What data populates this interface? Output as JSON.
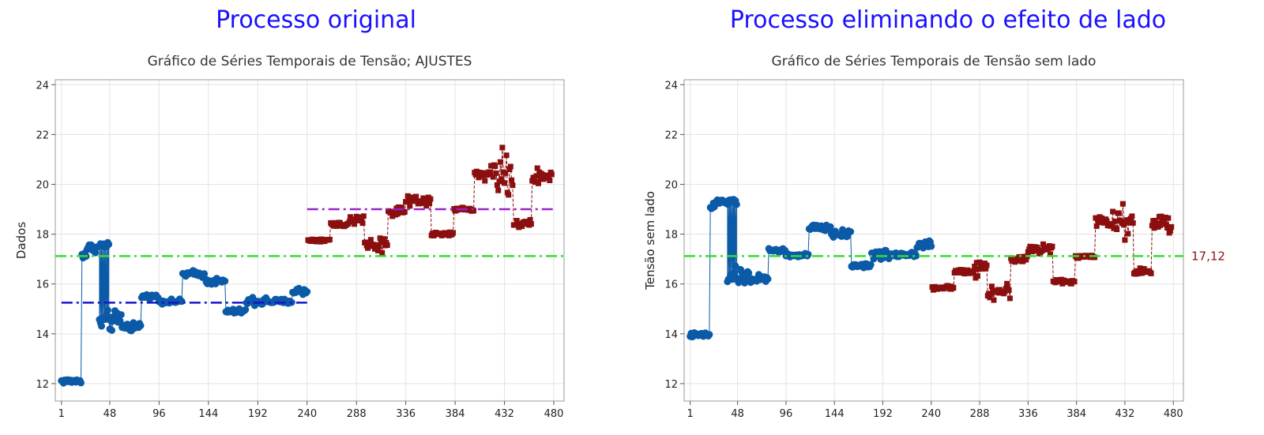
{
  "panels": [
    {
      "heading": "Processo original",
      "chart_title": "Gráfico de Séries Temporais de Tensão; AJUSTES",
      "ylabel": "Dados"
    },
    {
      "heading": "Processo eliminando o efeito de lado",
      "chart_title": "Gráfico de Séries Temporais de Tensão sem lado",
      "ylabel": "Tensão sem lado",
      "ref_label": "17,12"
    }
  ],
  "colors": {
    "heading": "#1a10ff",
    "group1": "#0b5aa8",
    "group2": "#8b0f0f",
    "overall_ref": "#33dd33",
    "group1_mean": "#1515cc",
    "group2_mean": "#9922cc",
    "grid": "#e3e3e3"
  },
  "chart_data": [
    {
      "type": "line",
      "title": "Gráfico de Séries Temporais de Tensão; AJUSTES",
      "xlabel": "",
      "ylabel": "Dados",
      "xlim": [
        -5,
        490
      ],
      "ylim": [
        11.3,
        24.2
      ],
      "xticks": [
        1,
        48,
        96,
        144,
        192,
        240,
        288,
        336,
        384,
        432,
        480
      ],
      "yticks": [
        12,
        14,
        16,
        18,
        20,
        22,
        24
      ],
      "grid": true,
      "reference_lines": [
        {
          "y": 17.12,
          "x_range": [
            -5,
            490
          ],
          "style": "dash-dot",
          "color": "#33dd33",
          "role": "overall"
        },
        {
          "y": 15.25,
          "x_range": [
            1,
            240
          ],
          "style": "dash-dot",
          "color": "#1515cc",
          "role": "group1"
        },
        {
          "y": 19.0,
          "x_range": [
            240,
            480
          ],
          "style": "dash-dot",
          "color": "#9922cc",
          "role": "group2"
        }
      ],
      "series": [
        {
          "marker": "circle",
          "segments": [
            {
              "x": [
                1,
                20
              ],
              "y": 12.1,
              "spread": 0.14
            },
            {
              "x": [
                21,
                25
              ],
              "y": 17.2,
              "spread": 0.3
            },
            {
              "x": [
                26,
                37
              ],
              "y": 17.45,
              "spread": 0.25
            },
            {
              "x": [
                38,
                47
              ],
              "y": 17.55,
              "spread": 0.2
            },
            {
              "x": [
                38,
                60
              ],
              "y": 14.5,
              "spread": 0.6
            },
            {
              "x": [
                61,
                78
              ],
              "y": 14.3,
              "spread": 0.3
            },
            {
              "x": [
                79,
                95
              ],
              "y": 15.5,
              "spread": 0.12
            },
            {
              "x": [
                96,
                118
              ],
              "y": 15.3,
              "spread": 0.12
            },
            {
              "x": [
                119,
                140
              ],
              "y": 16.4,
              "spread": 0.2
            },
            {
              "x": [
                141,
                160
              ],
              "y": 16.1,
              "spread": 0.2
            },
            {
              "x": [
                161,
                180
              ],
              "y": 14.9,
              "spread": 0.15
            },
            {
              "x": [
                181,
                200
              ],
              "y": 15.3,
              "spread": 0.3
            },
            {
              "x": [
                201,
                225
              ],
              "y": 15.3,
              "spread": 0.15
            },
            {
              "x": [
                226,
                240
              ],
              "y": 15.7,
              "spread": 0.25
            }
          ]
        },
        {
          "marker": "square",
          "segments": [
            {
              "x": [
                241,
                262
              ],
              "y": 17.75,
              "spread": 0.1
            },
            {
              "x": [
                263,
                280
              ],
              "y": 18.4,
              "spread": 0.12
            },
            {
              "x": [
                281,
                295
              ],
              "y": 18.6,
              "spread": 0.5
            },
            {
              "x": [
                296,
                318
              ],
              "y": 17.6,
              "spread": 0.4
            },
            {
              "x": [
                319,
                335
              ],
              "y": 18.9,
              "spread": 0.3
            },
            {
              "x": [
                336,
                360
              ],
              "y": 19.3,
              "spread": 0.3
            },
            {
              "x": [
                361,
                382
              ],
              "y": 18.0,
              "spread": 0.12
            },
            {
              "x": [
                383,
                402
              ],
              "y": 19.0,
              "spread": 0.12
            },
            {
              "x": [
                403,
                418
              ],
              "y": 20.4,
              "spread": 0.3
            },
            {
              "x": [
                419,
                440
              ],
              "y": 20.5,
              "spread": 1.2
            },
            {
              "x": [
                441,
                458
              ],
              "y": 18.4,
              "spread": 0.2
            },
            {
              "x": [
                459,
                478
              ],
              "y": 20.3,
              "spread": 0.5
            }
          ]
        }
      ]
    },
    {
      "type": "line",
      "title": "Gráfico de Séries Temporais de Tensão sem lado",
      "xlabel": "",
      "ylabel": "Tensão sem lado",
      "xlim": [
        -5,
        490
      ],
      "ylim": [
        11.3,
        24.2
      ],
      "xticks": [
        1,
        48,
        96,
        144,
        192,
        240,
        288,
        336,
        384,
        432,
        480
      ],
      "yticks": [
        12,
        14,
        16,
        18,
        20,
        22,
        24
      ],
      "grid": true,
      "reference_lines": [
        {
          "y": 17.12,
          "x_range": [
            -5,
            490
          ],
          "style": "dash-dot",
          "color": "#33dd33",
          "role": "overall",
          "label": "17,12"
        }
      ],
      "series": [
        {
          "marker": "circle",
          "segments": [
            {
              "x": [
                1,
                20
              ],
              "y": 13.95,
              "spread": 0.14
            },
            {
              "x": [
                21,
                25
              ],
              "y": 19.1,
              "spread": 0.3
            },
            {
              "x": [
                26,
                47
              ],
              "y": 19.3,
              "spread": 0.2
            },
            {
              "x": [
                38,
                60
              ],
              "y": 16.3,
              "spread": 0.5
            },
            {
              "x": [
                61,
                78
              ],
              "y": 16.2,
              "spread": 0.25
            },
            {
              "x": [
                79,
                95
              ],
              "y": 17.35,
              "spread": 0.12
            },
            {
              "x": [
                96,
                118
              ],
              "y": 17.15,
              "spread": 0.12
            },
            {
              "x": [
                119,
                140
              ],
              "y": 18.25,
              "spread": 0.2
            },
            {
              "x": [
                141,
                160
              ],
              "y": 18.0,
              "spread": 0.2
            },
            {
              "x": [
                161,
                180
              ],
              "y": 16.75,
              "spread": 0.15
            },
            {
              "x": [
                181,
                200
              ],
              "y": 17.15,
              "spread": 0.3
            },
            {
              "x": [
                201,
                225
              ],
              "y": 17.2,
              "spread": 0.15
            },
            {
              "x": [
                226,
                240
              ],
              "y": 17.6,
              "spread": 0.25
            }
          ]
        },
        {
          "marker": "square",
          "segments": [
            {
              "x": [
                241,
                262
              ],
              "y": 15.85,
              "spread": 0.1
            },
            {
              "x": [
                263,
                280
              ],
              "y": 16.5,
              "spread": 0.12
            },
            {
              "x": [
                281,
                295
              ],
              "y": 16.7,
              "spread": 0.5
            },
            {
              "x": [
                296,
                318
              ],
              "y": 15.7,
              "spread": 0.4
            },
            {
              "x": [
                319,
                335
              ],
              "y": 17.0,
              "spread": 0.3
            },
            {
              "x": [
                336,
                360
              ],
              "y": 17.4,
              "spread": 0.3
            },
            {
              "x": [
                361,
                382
              ],
              "y": 16.1,
              "spread": 0.12
            },
            {
              "x": [
                383,
                402
              ],
              "y": 17.1,
              "spread": 0.12
            },
            {
              "x": [
                403,
                418
              ],
              "y": 18.5,
              "spread": 0.3
            },
            {
              "x": [
                419,
                440
              ],
              "y": 18.6,
              "spread": 1.2
            },
            {
              "x": [
                441,
                458
              ],
              "y": 16.5,
              "spread": 0.2
            },
            {
              "x": [
                459,
                478
              ],
              "y": 18.4,
              "spread": 0.5
            }
          ]
        }
      ]
    }
  ]
}
